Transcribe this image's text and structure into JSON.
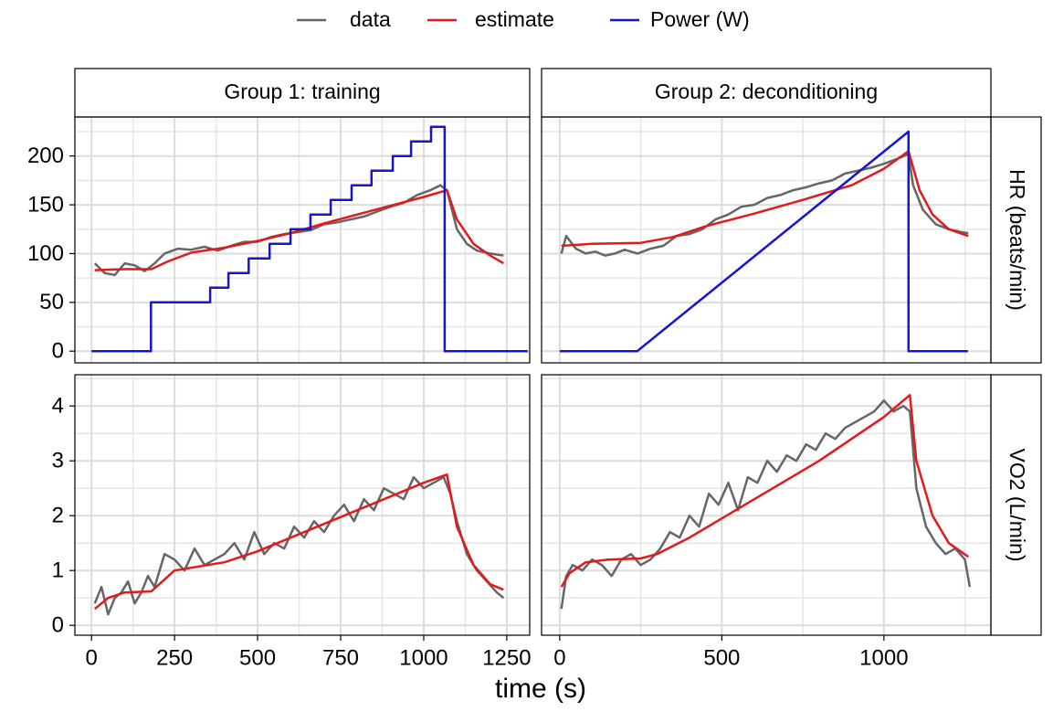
{
  "xlabel": "time (s)",
  "facets": {
    "columns": [
      "Group 1: training",
      "Group 2: deconditioning"
    ],
    "rows": [
      "HR (beats/min)",
      "VO2 (L/min)"
    ]
  },
  "chart_data": [
    {
      "type": "line",
      "xlim": [
        -50,
        1319
      ],
      "ylim": [
        -12,
        240
      ],
      "xticks": [
        0,
        250,
        500,
        750,
        1000,
        1250
      ],
      "xminor": [
        125,
        375,
        625,
        875,
        1125
      ],
      "yticks": [
        0,
        50,
        100,
        150,
        200
      ],
      "yminor": [
        25,
        75,
        125,
        175,
        225
      ],
      "grid": true,
      "series": [
        {
          "name": "data",
          "color": "#666666",
          "x": [
            10,
            40,
            70,
            100,
            130,
            160,
            190,
            220,
            260,
            300,
            340,
            380,
            420,
            460,
            500,
            540,
            580,
            620,
            660,
            700,
            740,
            780,
            820,
            860,
            900,
            940,
            980,
            1020,
            1050,
            1070,
            1100,
            1130,
            1160,
            1200,
            1240
          ],
          "values": [
            90,
            80,
            78,
            90,
            88,
            82,
            90,
            100,
            105,
            104,
            107,
            103,
            108,
            112,
            112,
            117,
            120,
            122,
            124,
            130,
            132,
            135,
            138,
            143,
            148,
            152,
            160,
            165,
            170,
            165,
            125,
            110,
            103,
            100,
            98
          ]
        },
        {
          "name": "estimate",
          "color": "#e31a1c",
          "x": [
            10,
            100,
            180,
            230,
            300,
            400,
            500,
            600,
            700,
            800,
            900,
            1000,
            1070,
            1100,
            1150,
            1200,
            1240
          ],
          "values": [
            83,
            84,
            84,
            92,
            101,
            106,
            113,
            121,
            131,
            140,
            149,
            158,
            165,
            135,
            110,
            98,
            90
          ]
        },
        {
          "name": "Power (W)",
          "color": "#1515d0",
          "x": [
            0,
            179,
            179,
            357,
            357,
            412,
            412,
            473,
            473,
            536,
            536,
            599,
            599,
            659,
            659,
            720,
            720,
            783,
            783,
            843,
            843,
            907,
            907,
            962,
            962,
            1022,
            1022,
            1063,
            1063,
            1313
          ],
          "values": [
            0,
            0,
            50,
            50,
            65,
            65,
            80,
            80,
            95,
            95,
            110,
            110,
            125,
            125,
            140,
            140,
            155,
            155,
            170,
            170,
            185,
            185,
            200,
            200,
            215,
            215,
            230,
            230,
            0,
            0
          ]
        }
      ]
    },
    {
      "type": "line",
      "xlim": [
        -56,
        1330
      ],
      "ylim": [
        -12,
        240
      ],
      "xticks": [
        0,
        500,
        1000
      ],
      "xminor": [
        250,
        750,
        1250
      ],
      "yticks": [
        0,
        50,
        100,
        150,
        200
      ],
      "yminor": [
        25,
        75,
        125,
        175,
        225
      ],
      "grid": true,
      "series": [
        {
          "name": "data",
          "color": "#666666",
          "x": [
            5,
            20,
            50,
            80,
            110,
            140,
            170,
            200,
            240,
            280,
            320,
            360,
            400,
            440,
            480,
            520,
            560,
            600,
            640,
            680,
            720,
            760,
            800,
            840,
            880,
            920,
            960,
            1000,
            1040,
            1076,
            1090,
            1120,
            1160,
            1200,
            1240,
            1260
          ],
          "values": [
            100,
            118,
            105,
            100,
            102,
            98,
            100,
            104,
            100,
            105,
            108,
            118,
            120,
            125,
            135,
            140,
            148,
            150,
            157,
            160,
            165,
            168,
            172,
            175,
            182,
            185,
            188,
            192,
            197,
            202,
            170,
            145,
            130,
            125,
            122,
            121
          ]
        },
        {
          "name": "estimate",
          "color": "#e31a1c",
          "x": [
            5,
            100,
            250,
            350,
            450,
            600,
            750,
            900,
            1000,
            1076,
            1110,
            1150,
            1200,
            1260
          ],
          "values": [
            108,
            110,
            111,
            117,
            128,
            141,
            155,
            170,
            187,
            205,
            165,
            140,
            125,
            118
          ]
        },
        {
          "name": "Power (W)",
          "color": "#1515d0",
          "x": [
            0,
            239,
            1076,
            1076,
            1259
          ],
          "values": [
            0,
            0,
            225,
            0,
            0
          ]
        }
      ]
    },
    {
      "type": "line",
      "xlim": [
        -50,
        1319
      ],
      "ylim": [
        -0.18,
        4.57
      ],
      "xticks": [
        0,
        250,
        500,
        750,
        1000,
        1250
      ],
      "xminor": [
        125,
        375,
        625,
        875,
        1125
      ],
      "yticks": [
        0,
        1,
        2,
        3,
        4
      ],
      "yminor": [
        0.5,
        1.5,
        2.5,
        3.5,
        4.5
      ],
      "grid": true,
      "series": [
        {
          "name": "data",
          "color": "#666666",
          "x": [
            10,
            30,
            50,
            70,
            90,
            110,
            130,
            150,
            170,
            190,
            220,
            250,
            280,
            310,
            340,
            370,
            400,
            430,
            460,
            490,
            520,
            550,
            580,
            610,
            640,
            670,
            700,
            730,
            760,
            790,
            820,
            850,
            880,
            910,
            940,
            970,
            1000,
            1030,
            1060,
            1080,
            1100,
            1130,
            1160,
            1190,
            1220,
            1240
          ],
          "values": [
            0.4,
            0.7,
            0.2,
            0.5,
            0.6,
            0.8,
            0.4,
            0.6,
            0.9,
            0.7,
            1.3,
            1.2,
            1.0,
            1.4,
            1.1,
            1.2,
            1.3,
            1.5,
            1.2,
            1.7,
            1.3,
            1.5,
            1.4,
            1.8,
            1.6,
            1.9,
            1.7,
            2.0,
            2.2,
            1.9,
            2.3,
            2.1,
            2.5,
            2.4,
            2.3,
            2.7,
            2.5,
            2.6,
            2.7,
            2.4,
            1.9,
            1.3,
            1.0,
            0.8,
            0.6,
            0.5
          ]
        },
        {
          "name": "estimate",
          "color": "#e31a1c",
          "x": [
            10,
            50,
            100,
            180,
            250,
            350,
            400,
            500,
            600,
            700,
            800,
            900,
            1000,
            1070,
            1100,
            1150,
            1200,
            1240
          ],
          "values": [
            0.3,
            0.5,
            0.6,
            0.62,
            1.0,
            1.1,
            1.15,
            1.35,
            1.6,
            1.85,
            2.1,
            2.35,
            2.6,
            2.75,
            1.8,
            1.1,
            0.75,
            0.65
          ]
        }
      ]
    },
    {
      "type": "line",
      "xlim": [
        -56,
        1330
      ],
      "ylim": [
        -0.18,
        4.57
      ],
      "xticks": [
        0,
        500,
        1000
      ],
      "xminor": [
        250,
        750,
        1250
      ],
      "yticks": [
        0,
        1,
        2,
        3,
        4
      ],
      "yminor": [
        0.5,
        1.5,
        2.5,
        3.5,
        4.5
      ],
      "grid": true,
      "series": [
        {
          "name": "data",
          "color": "#666666",
          "x": [
            5,
            20,
            40,
            70,
            100,
            130,
            160,
            190,
            220,
            250,
            280,
            310,
            340,
            370,
            400,
            430,
            460,
            490,
            520,
            550,
            580,
            610,
            640,
            670,
            700,
            730,
            760,
            790,
            820,
            850,
            880,
            910,
            940,
            970,
            1000,
            1030,
            1060,
            1080,
            1100,
            1130,
            1160,
            1190,
            1220,
            1250,
            1265
          ],
          "values": [
            0.3,
            0.9,
            1.1,
            1.0,
            1.2,
            1.1,
            0.9,
            1.2,
            1.3,
            1.1,
            1.2,
            1.4,
            1.7,
            1.6,
            2.0,
            1.8,
            2.4,
            2.2,
            2.6,
            2.1,
            2.7,
            2.6,
            3.0,
            2.8,
            3.1,
            3.0,
            3.3,
            3.2,
            3.5,
            3.4,
            3.6,
            3.7,
            3.8,
            3.9,
            4.1,
            3.9,
            4.0,
            3.9,
            2.5,
            1.8,
            1.5,
            1.3,
            1.4,
            1.2,
            0.7
          ]
        },
        {
          "name": "estimate",
          "color": "#e31a1c",
          "x": [
            5,
            30,
            80,
            150,
            250,
            300,
            400,
            500,
            600,
            700,
            800,
            900,
            1000,
            1080,
            1100,
            1150,
            1200,
            1260
          ],
          "values": [
            0.7,
            0.95,
            1.15,
            1.2,
            1.22,
            1.3,
            1.6,
            1.95,
            2.3,
            2.65,
            3.0,
            3.4,
            3.8,
            4.2,
            3.0,
            2.0,
            1.5,
            1.25
          ]
        }
      ]
    }
  ]
}
